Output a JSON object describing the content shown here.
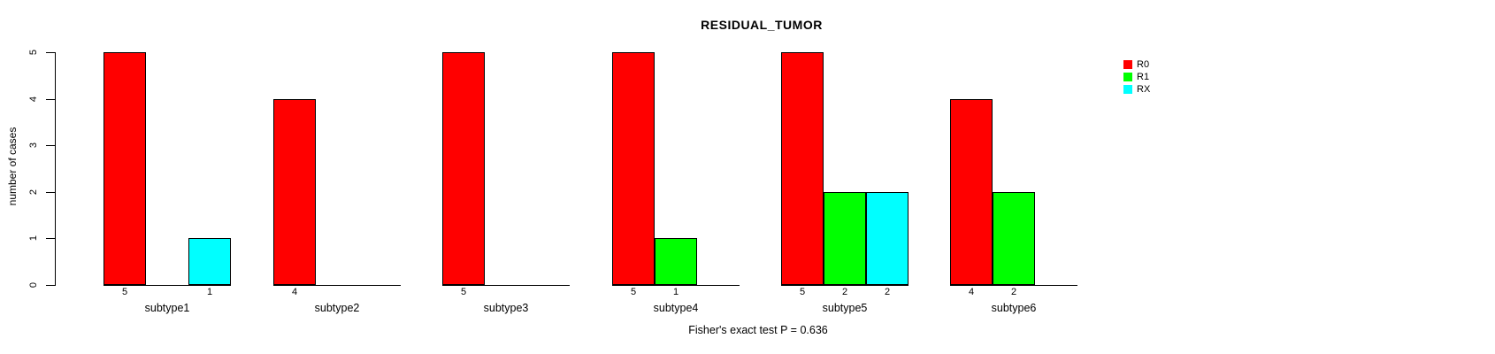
{
  "chart_data": {
    "type": "bar",
    "title": "RESIDUAL_TUMOR",
    "ylabel": "number of cases",
    "footer": "Fisher's exact test P = 0.636",
    "ylim": [
      0,
      5
    ],
    "ytick_labels": [
      "0",
      "1",
      "2",
      "3",
      "4",
      "5"
    ],
    "grid": false,
    "legend_position": "right-outside",
    "categories": [
      "subtype1",
      "subtype2",
      "subtype3",
      "subtype4",
      "subtype5",
      "subtype6"
    ],
    "series": [
      {
        "name": "R0",
        "color": "#FF0000",
        "values": [
          5,
          4,
          5,
          5,
          5,
          4
        ]
      },
      {
        "name": "R1",
        "color": "#00FF00",
        "values": [
          0,
          0,
          0,
          1,
          2,
          2
        ]
      },
      {
        "name": "RX",
        "color": "#00FFFF",
        "values": [
          1,
          0,
          0,
          0,
          2,
          0
        ]
      }
    ],
    "value_labels": [
      [
        "5",
        "",
        "1"
      ],
      [
        "4",
        "",
        ""
      ],
      [
        "5",
        "",
        ""
      ],
      [
        "5",
        "1",
        ""
      ],
      [
        "5",
        "2",
        "2"
      ],
      [
        "4",
        "2",
        ""
      ]
    ]
  }
}
